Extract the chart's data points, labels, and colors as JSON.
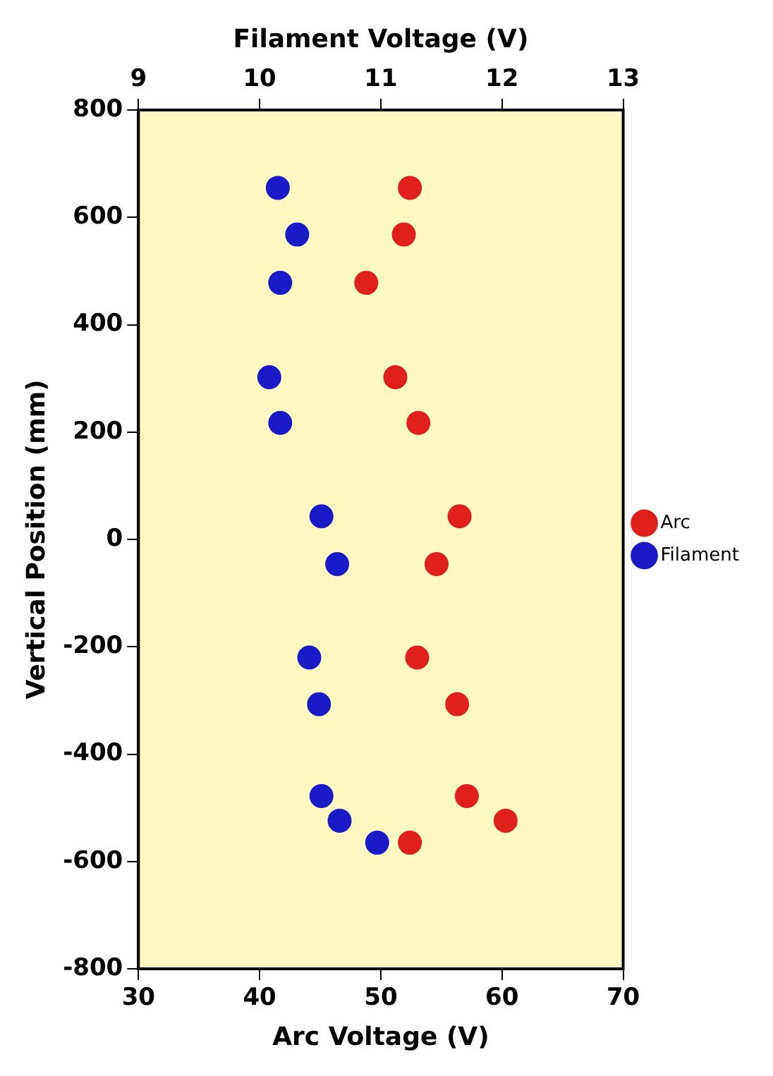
{
  "chart_data": {
    "type": "scatter",
    "xlabel": "Arc Voltage (V)",
    "x2label": "Filament Voltage (V)",
    "ylabel": "Vertical Position (mm)",
    "xlim": [
      30,
      70
    ],
    "xticks": [
      30,
      40,
      50,
      60,
      70
    ],
    "x2lim": [
      9,
      13
    ],
    "x2ticks": [
      9,
      10,
      11,
      12,
      13
    ],
    "ylim": [
      -800,
      800
    ],
    "yticks": [
      -800,
      -600,
      -400,
      -200,
      0,
      200,
      400,
      600,
      800
    ],
    "grid": false,
    "legend": "right",
    "marker": "circle",
    "series": [
      {
        "name": "Arc",
        "color": "#e0201a",
        "x": [
          52.4,
          51.9,
          48.8,
          51.2,
          53.1,
          56.5,
          54.6,
          53.0,
          56.3,
          57.1,
          60.3,
          52.4
        ],
        "values": [
          655,
          568,
          478,
          302,
          217,
          43,
          -46,
          -220,
          -307,
          -478,
          -524,
          -565
        ]
      },
      {
        "name": "Filament",
        "color": "#1a1ac8",
        "axis": "x2",
        "x": [
          10.15,
          10.31,
          10.17,
          10.08,
          10.17,
          10.51,
          10.64,
          10.41,
          10.49,
          10.51,
          10.66,
          10.97
        ],
        "values": [
          655,
          568,
          478,
          302,
          217,
          43,
          -46,
          -220,
          -307,
          -478,
          -524,
          -565
        ]
      }
    ]
  }
}
